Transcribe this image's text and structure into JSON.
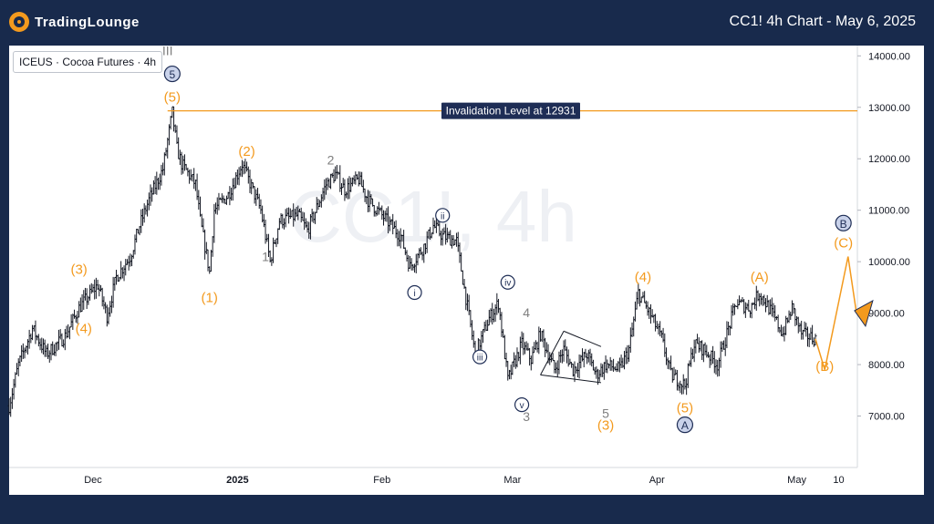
{
  "header": {
    "logo_text": "TradingLounge",
    "title": "CC1! 4h Chart - May 6, 2025"
  },
  "legend": {
    "symbol": "ICEUS · Cocoa Futures · 4h",
    "menu_glyph": "|||"
  },
  "watermark": "CC1!, 4h",
  "colors": {
    "background": "#182a4c",
    "wave_orange": "#f39a1e",
    "wave_navy": "#1e2d55",
    "wave_gray": "#7f7f7f",
    "candle": "#131722",
    "invalidation_line": "#f39a1e"
  },
  "chart_data": {
    "type": "candlestick",
    "x_tick_labels": [
      "Dec",
      "2025",
      "Feb",
      "Mar",
      "Apr",
      "May",
      "10"
    ],
    "y_tick_labels": [
      "7000.00",
      "8000.00",
      "9000.00",
      "10000.00",
      "11000.00",
      "12000.00",
      "13000.00",
      "14000.00"
    ],
    "ylim": [
      6000,
      14200
    ],
    "invalidation": {
      "label": "Invalidation Level at 12931",
      "value": 12931
    },
    "price_path": [
      [
        "2024-11-13",
        7200
      ],
      [
        "2024-11-15",
        8000
      ],
      [
        "2024-11-18",
        8700
      ],
      [
        "2024-11-21",
        8200
      ],
      [
        "2024-11-25",
        8550
      ],
      [
        "2024-11-28",
        9100
      ],
      [
        "2024-12-02",
        9550
      ],
      [
        "2024-12-04",
        8950
      ],
      [
        "2024-12-06",
        9700
      ],
      [
        "2024-12-09",
        10100
      ],
      [
        "2024-12-11",
        10700
      ],
      [
        "2024-12-13",
        11200
      ],
      [
        "2024-12-16",
        11800
      ],
      [
        "2024-12-18",
        12900
      ],
      [
        "2024-12-19",
        12200
      ],
      [
        "2024-12-20",
        11900
      ],
      [
        "2024-12-23",
        11500
      ],
      [
        "2024-12-24",
        10800
      ],
      [
        "2024-12-26",
        9800
      ],
      [
        "2024-12-27",
        11000
      ],
      [
        "2024-12-30",
        11300
      ],
      [
        "2025-01-02",
        11900
      ],
      [
        "2025-01-06",
        11000
      ],
      [
        "2025-01-08",
        10000
      ],
      [
        "2025-01-10",
        10800
      ],
      [
        "2025-01-14",
        10900
      ],
      [
        "2025-01-16",
        10600
      ],
      [
        "2025-01-20",
        11500
      ],
      [
        "2025-01-22",
        11700
      ],
      [
        "2025-01-24",
        11400
      ],
      [
        "2025-01-27",
        11600
      ],
      [
        "2025-01-29",
        11200
      ],
      [
        "2025-02-03",
        10700
      ],
      [
        "2025-02-05",
        10500
      ],
      [
        "2025-02-07",
        9900
      ],
      [
        "2025-02-10",
        10300
      ],
      [
        "2025-02-12",
        10700
      ],
      [
        "2025-02-14",
        10500
      ],
      [
        "2025-02-17",
        10400
      ],
      [
        "2025-02-19",
        9300
      ],
      [
        "2025-02-21",
        8200
      ],
      [
        "2025-02-24",
        8900
      ],
      [
        "2025-02-26",
        9200
      ],
      [
        "2025-02-28",
        7700
      ],
      [
        "2025-03-03",
        8400
      ],
      [
        "2025-03-05",
        8100
      ],
      [
        "2025-03-07",
        8600
      ],
      [
        "2025-03-10",
        7900
      ],
      [
        "2025-03-12",
        8300
      ],
      [
        "2025-03-14",
        7900
      ],
      [
        "2025-03-17",
        8200
      ],
      [
        "2025-03-19",
        7800
      ],
      [
        "2025-03-21",
        8000
      ],
      [
        "2025-03-24",
        7900
      ],
      [
        "2025-03-26",
        8300
      ],
      [
        "2025-03-28",
        9400
      ],
      [
        "2025-03-31",
        8900
      ],
      [
        "2025-04-02",
        8500
      ],
      [
        "2025-04-04",
        7800
      ],
      [
        "2025-04-07",
        7600
      ],
      [
        "2025-04-09",
        8400
      ],
      [
        "2025-04-11",
        8300
      ],
      [
        "2025-04-14",
        8000
      ],
      [
        "2025-04-16",
        8600
      ],
      [
        "2025-04-18",
        9200
      ],
      [
        "2025-04-21",
        9100
      ],
      [
        "2025-04-23",
        9400
      ],
      [
        "2025-04-25",
        9100
      ],
      [
        "2025-04-28",
        8600
      ],
      [
        "2025-04-30",
        9100
      ],
      [
        "2025-05-02",
        8600
      ],
      [
        "2025-05-05",
        8500
      ]
    ],
    "projection": [
      [
        "2025-05-05",
        8500
      ],
      [
        "2025-05-07",
        7900
      ],
      [
        "2025-05-12",
        10100
      ]
    ],
    "wedge": {
      "upper": [
        [
          "2025-03-12",
          8650
        ],
        [
          "2025-03-20",
          8350
        ]
      ],
      "lower": [
        [
          "2025-03-07",
          7800
        ],
        [
          "2025-03-20",
          7650
        ]
      ]
    },
    "projection_arrow_tip": [
      "2025-05-13",
      8800
    ],
    "wave_labels": [
      {
        "text": "(3)",
        "date": "2024-11-28",
        "price": 9850,
        "style": "orange"
      },
      {
        "text": "(4)",
        "date": "2024-11-29",
        "price": 8700,
        "style": "orange"
      },
      {
        "text": "(5)",
        "date": "2024-12-18",
        "price": 13200,
        "style": "orange"
      },
      {
        "text": "5",
        "date": "2024-12-18",
        "price": 13650,
        "style": "navy-circle"
      },
      {
        "text": "III",
        "date": "2024-12-17",
        "price": 14100,
        "style": "gray"
      },
      {
        "text": "(1)",
        "date": "2024-12-26",
        "price": 9300,
        "style": "orange"
      },
      {
        "text": "(2)",
        "date": "2025-01-03",
        "price": 12150,
        "style": "orange"
      },
      {
        "text": "1",
        "date": "2025-01-07",
        "price": 10100,
        "style": "gray"
      },
      {
        "text": "2",
        "date": "2025-01-21",
        "price": 11980,
        "style": "gray"
      },
      {
        "text": "i",
        "date": "2025-02-08",
        "price": 9400,
        "style": "navy-circle-small"
      },
      {
        "text": "ii",
        "date": "2025-02-14",
        "price": 10900,
        "style": "navy-circle-small"
      },
      {
        "text": "iii",
        "date": "2025-02-22",
        "price": 8150,
        "style": "navy-circle-small"
      },
      {
        "text": "iv",
        "date": "2025-02-28",
        "price": 9600,
        "style": "navy-circle-small"
      },
      {
        "text": "4",
        "date": "2025-03-04",
        "price": 9010,
        "style": "gray"
      },
      {
        "text": "v",
        "date": "2025-03-03",
        "price": 7220,
        "style": "navy-circle-small"
      },
      {
        "text": "3",
        "date": "2025-03-04",
        "price": 6990,
        "style": "gray"
      },
      {
        "text": "5",
        "date": "2025-03-21",
        "price": 7050,
        "style": "gray"
      },
      {
        "text": "(3)",
        "date": "2025-03-21",
        "price": 6820,
        "style": "orange"
      },
      {
        "text": "(4)",
        "date": "2025-03-29",
        "price": 9700,
        "style": "orange"
      },
      {
        "text": "(5)",
        "date": "2025-04-07",
        "price": 7160,
        "style": "orange"
      },
      {
        "text": "A",
        "date": "2025-04-07",
        "price": 6830,
        "style": "navy-circle"
      },
      {
        "text": "(A)",
        "date": "2025-04-23",
        "price": 9700,
        "style": "orange"
      },
      {
        "text": "(B)",
        "date": "2025-05-07",
        "price": 7970,
        "style": "orange"
      },
      {
        "text": "(C)",
        "date": "2025-05-11",
        "price": 10370,
        "style": "orange"
      },
      {
        "text": "B",
        "date": "2025-05-11",
        "price": 10750,
        "style": "navy-circle"
      }
    ]
  }
}
